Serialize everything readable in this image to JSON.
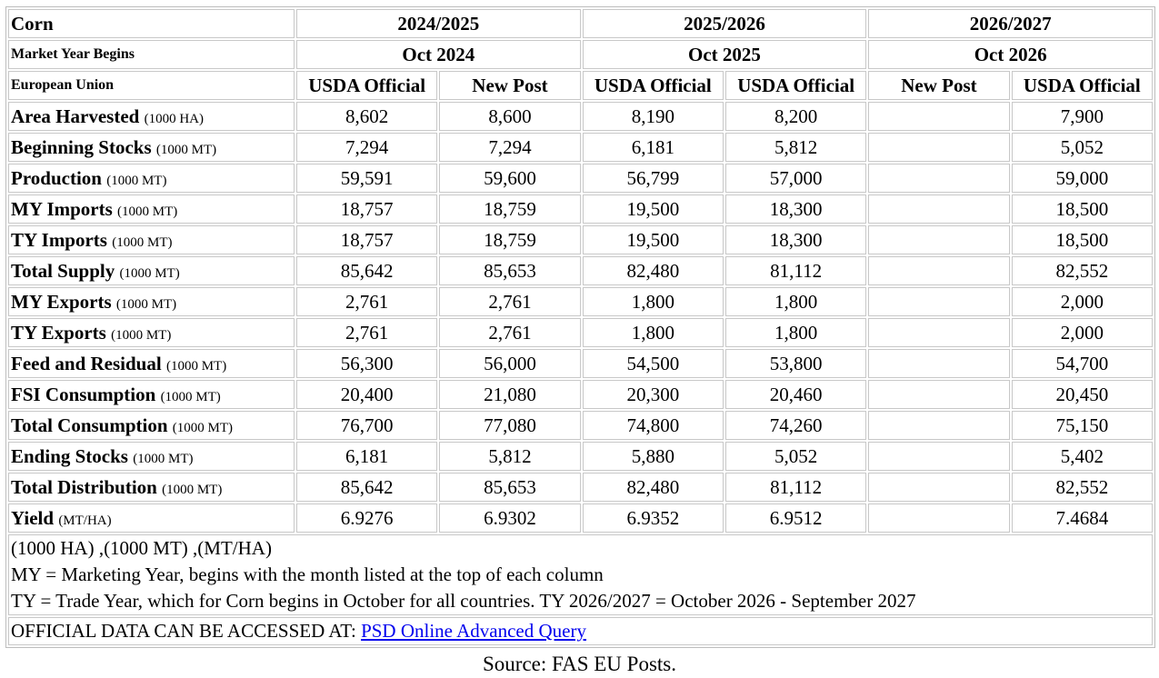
{
  "table": {
    "commodity": "Corn",
    "market_year_label": "Market Year Begins",
    "country": "European Union",
    "years": [
      {
        "label": "2024/2025",
        "begins": "Oct 2024",
        "cols": [
          "USDA Official",
          "New Post"
        ]
      },
      {
        "label": "2025/2026",
        "begins": "Oct 2025",
        "cols": [
          "USDA Official",
          "USDA Official"
        ]
      },
      {
        "label": "2026/2027",
        "begins": "Oct 2026",
        "cols": [
          "New Post",
          "USDA Official"
        ]
      }
    ],
    "rows": [
      {
        "label": "Area Harvested",
        "unit": "(1000 HA)",
        "values": [
          "8,602",
          "8,600",
          "8,190",
          "8,200",
          "",
          "7,900"
        ]
      },
      {
        "label": "Beginning Stocks",
        "unit": "(1000 MT)",
        "values": [
          "7,294",
          "7,294",
          "6,181",
          "5,812",
          "",
          "5,052"
        ]
      },
      {
        "label": "Production",
        "unit": "(1000 MT)",
        "values": [
          "59,591",
          "59,600",
          "56,799",
          "57,000",
          "",
          "59,000"
        ]
      },
      {
        "label": "MY Imports",
        "unit": "(1000 MT)",
        "values": [
          "18,757",
          "18,759",
          "19,500",
          "18,300",
          "",
          "18,500"
        ]
      },
      {
        "label": "TY Imports",
        "unit": "(1000 MT)",
        "values": [
          "18,757",
          "18,759",
          "19,500",
          "18,300",
          "",
          "18,500"
        ]
      },
      {
        "label": "Total Supply",
        "unit": "(1000 MT)",
        "values": [
          "85,642",
          "85,653",
          "82,480",
          "81,112",
          "",
          "82,552"
        ]
      },
      {
        "label": "MY Exports",
        "unit": "(1000 MT)",
        "values": [
          "2,761",
          "2,761",
          "1,800",
          "1,800",
          "",
          "2,000"
        ]
      },
      {
        "label": "TY Exports",
        "unit": "(1000 MT)",
        "values": [
          "2,761",
          "2,761",
          "1,800",
          "1,800",
          "",
          "2,000"
        ]
      },
      {
        "label": "Feed and Residual",
        "unit": "(1000 MT)",
        "values": [
          "56,300",
          "56,000",
          "54,500",
          "53,800",
          "",
          "54,700"
        ]
      },
      {
        "label": "FSI Consumption",
        "unit": "(1000 MT)",
        "values": [
          "20,400",
          "21,080",
          "20,300",
          "20,460",
          "",
          "20,450"
        ]
      },
      {
        "label": "Total Consumption",
        "unit": "(1000 MT)",
        "values": [
          "76,700",
          "77,080",
          "74,800",
          "74,260",
          "",
          "75,150"
        ]
      },
      {
        "label": "Ending Stocks",
        "unit": "(1000 MT)",
        "values": [
          "6,181",
          "5,812",
          "5,880",
          "5,052",
          "",
          "5,402"
        ]
      },
      {
        "label": "Total Distribution",
        "unit": "(1000 MT)",
        "values": [
          "85,642",
          "85,653",
          "82,480",
          "81,112",
          "",
          "82,552"
        ]
      },
      {
        "label": "Yield",
        "unit": "(MT/HA)",
        "values": [
          "6.9276",
          "6.9302",
          "6.9352",
          "6.9512",
          "",
          "7.4684"
        ]
      }
    ],
    "notes": [
      "(1000 HA) ,(1000 MT) ,(MT/HA)",
      "MY = Marketing Year, begins with the month listed at the top of each column",
      "TY = Trade Year, which for Corn begins in October for all countries. TY 2026/2027 = October 2026 - September 2027"
    ],
    "access_prefix": "OFFICIAL DATA CAN BE ACCESSED AT: ",
    "access_link": "PSD Online Advanced Query"
  },
  "source": "Source: FAS EU Posts."
}
